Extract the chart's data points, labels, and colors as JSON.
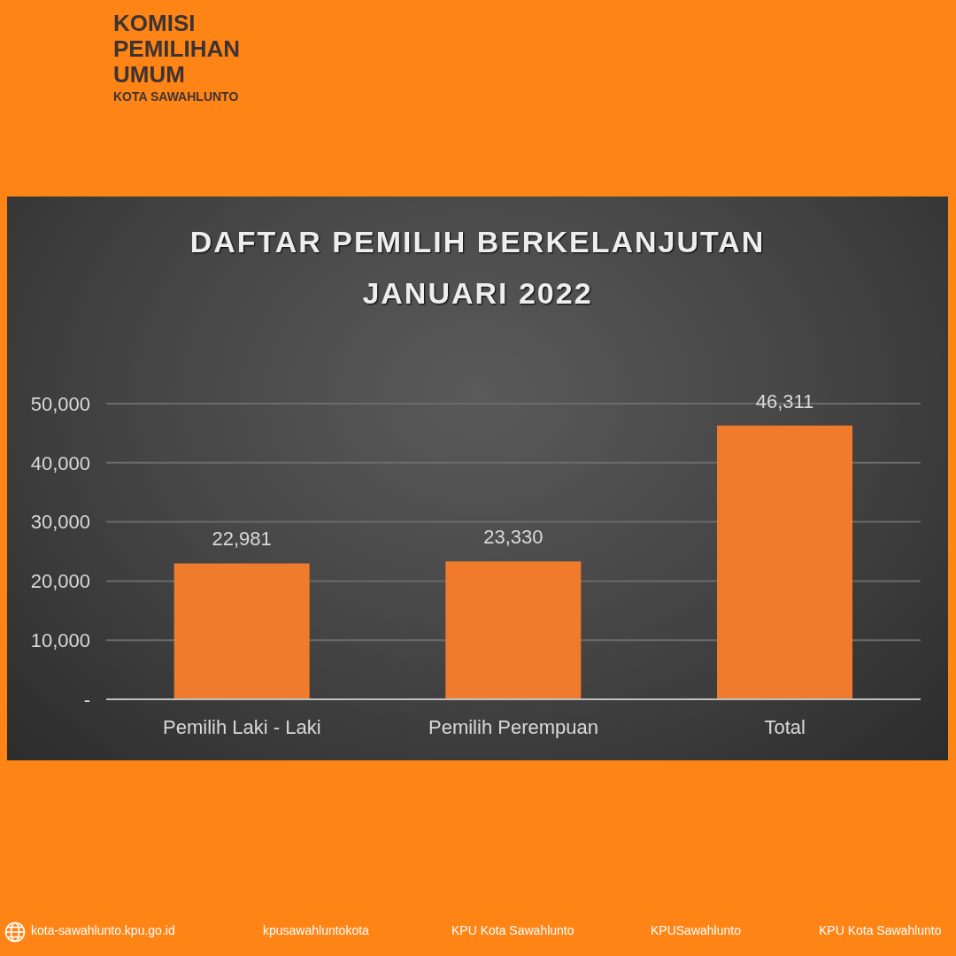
{
  "chart_data": {
    "type": "bar",
    "title": "DAFTAR PEMILIH BERKELANJUTAN JANUARI 2022",
    "categories": [
      "Pemilih Laki - Laki",
      "Pemilih Perempuan",
      "Total"
    ],
    "values": [
      22981,
      23330,
      46311
    ],
    "value_labels": [
      "22,981",
      "23,330",
      "46,311"
    ],
    "color": "#f07b2d",
    "ylim": [
      0,
      50000
    ],
    "yticks": [
      {
        "value": 0,
        "label": "-"
      },
      {
        "value": 10000,
        "label": "10,000"
      },
      {
        "value": 20000,
        "label": "20,000"
      },
      {
        "value": 30000,
        "label": "30,000"
      },
      {
        "value": 40000,
        "label": "40,000"
      },
      {
        "value": 50000,
        "label": "50,000"
      }
    ],
    "grid": "y",
    "annotations": [
      "KOMISI PEMILIHAN UMUM",
      "KOTA SAWAHLUNTO",
      "kota-sawahlunto.kpu.go.id",
      "kpusawahluntokota",
      "KPU Kota Sawahlunto",
      "KPUSawahlunto",
      "KPU Kota Sawahlunto"
    ]
  }
}
